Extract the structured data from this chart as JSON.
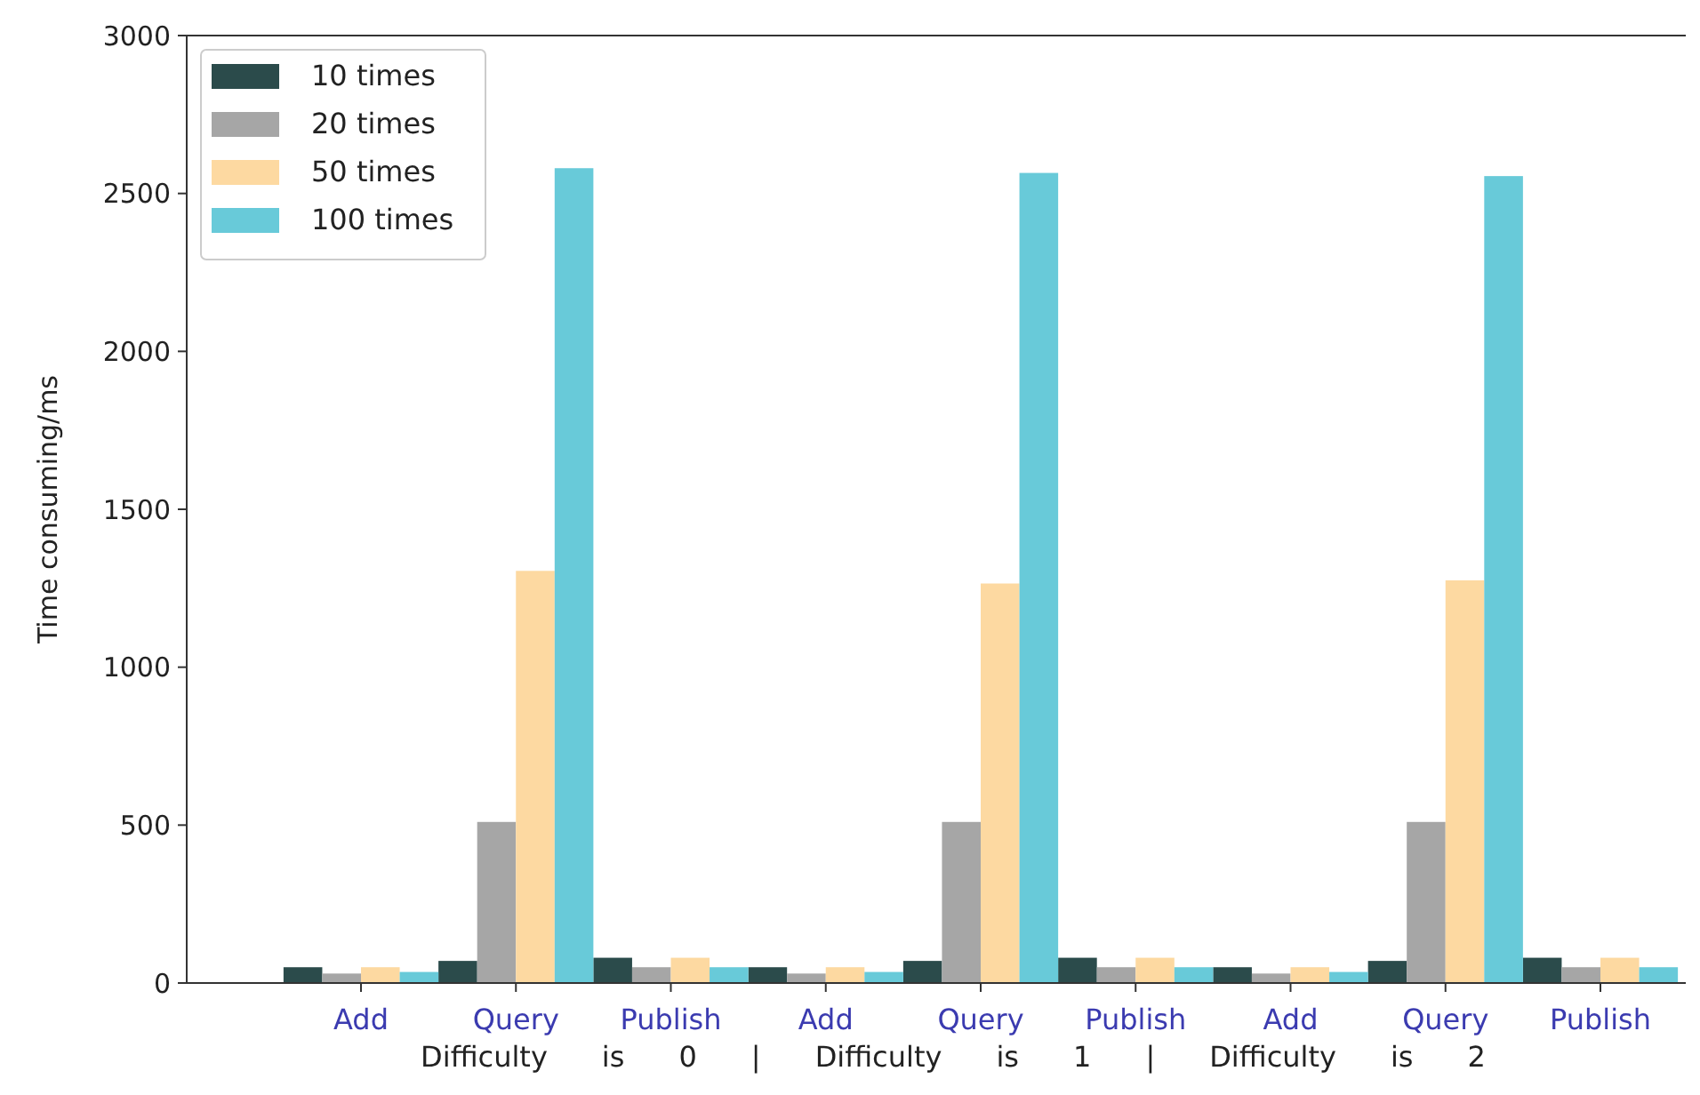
{
  "chart_data": {
    "type": "bar",
    "ylabel": "Time consuming/ms",
    "xlabel": "Difficulty      is      0      |      Difficulty      is      1      |      Difficulty      is      2",
    "categories": [
      "Add",
      "Query",
      "Publish",
      "Add",
      "Query",
      "Publish",
      "Add",
      "Query",
      "Publish"
    ],
    "series": [
      {
        "name": "10 times",
        "color": "#2b4b4b",
        "values": [
          50,
          70,
          80,
          50,
          70,
          80,
          50,
          70,
          80
        ]
      },
      {
        "name": "20 times",
        "color": "#a6a6a6",
        "values": [
          30,
          510,
          50,
          30,
          510,
          50,
          30,
          510,
          50
        ]
      },
      {
        "name": "50 times",
        "color": "#fdd9a1",
        "values": [
          50,
          1305,
          80,
          50,
          1265,
          80,
          50,
          1275,
          80
        ]
      },
      {
        "name": "100 times",
        "color": "#68cad9",
        "values": [
          35,
          2580,
          50,
          35,
          2565,
          50,
          35,
          2555,
          50
        ]
      }
    ],
    "ylim": [
      0,
      3000
    ],
    "yticks": [
      0,
      500,
      1000,
      1500,
      2000,
      2500,
      3000
    ],
    "grid": false,
    "legend": "top left"
  }
}
